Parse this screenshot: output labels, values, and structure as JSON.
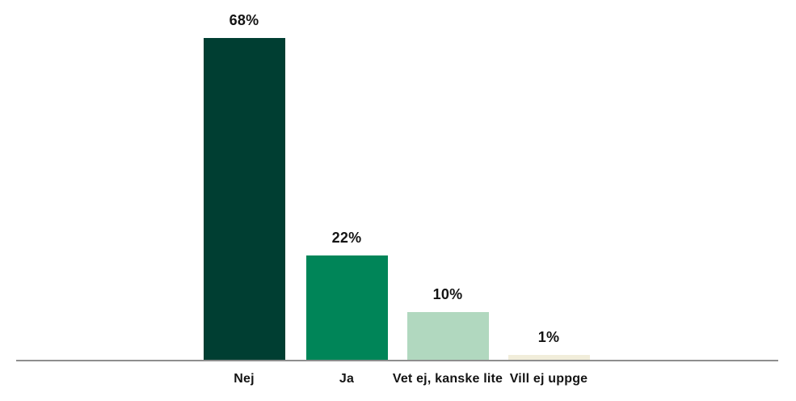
{
  "chart_data": {
    "type": "bar",
    "title": "",
    "xlabel": "",
    "ylabel": "",
    "categories": [
      "Nej",
      "Ja",
      "Vet ej, kanske lite",
      "Vill ej uppge"
    ],
    "values": [
      68,
      22,
      10,
      1
    ],
    "data_labels": [
      "68%",
      "22%",
      "10%",
      "1%"
    ],
    "unit": "%",
    "ylim": [
      0,
      75
    ],
    "grid": false,
    "legend": "none",
    "axis_ticks": "none",
    "bar_colors": [
      "#003e32",
      "#008558",
      "#b1d8bf",
      "#f1edda"
    ],
    "axis_line_color": "#8e8e8e",
    "label_color": "#141414",
    "background_color": "#ffffff"
  }
}
